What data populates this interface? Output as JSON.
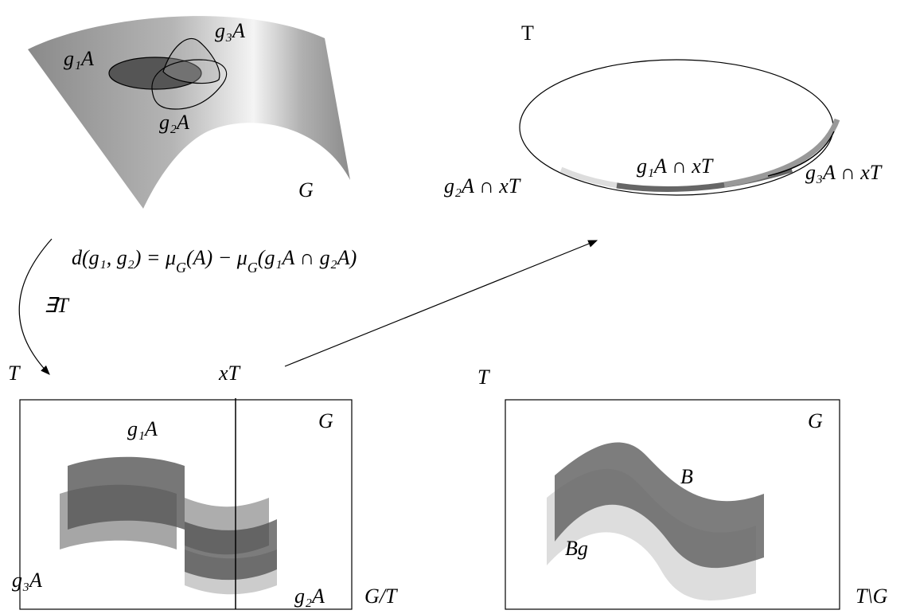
{
  "surface": {
    "labels": [
      "g₁A",
      "g₃A",
      "g₂A"
    ],
    "group": "G"
  },
  "circle": {
    "title": "T",
    "labels": [
      "g₂A ∩ xT",
      "g₁A ∩ xT",
      "g₃A ∩ xT"
    ]
  },
  "formula": [
    "d(g₁, g₂) = μ",
    "G",
    "(A) − μ",
    "G",
    "(g₁A ∩ g₂A)"
  ],
  "exists": "∃T",
  "left_box": {
    "corner": "T",
    "line": "xT",
    "group": "G",
    "labels": [
      "g₁A",
      "g₃A",
      "g₂A"
    ],
    "quotient": "G/T"
  },
  "right_box": {
    "corner": "T",
    "group": "G",
    "labels": [
      "B",
      "Bg"
    ],
    "quotient": "T\\G"
  }
}
